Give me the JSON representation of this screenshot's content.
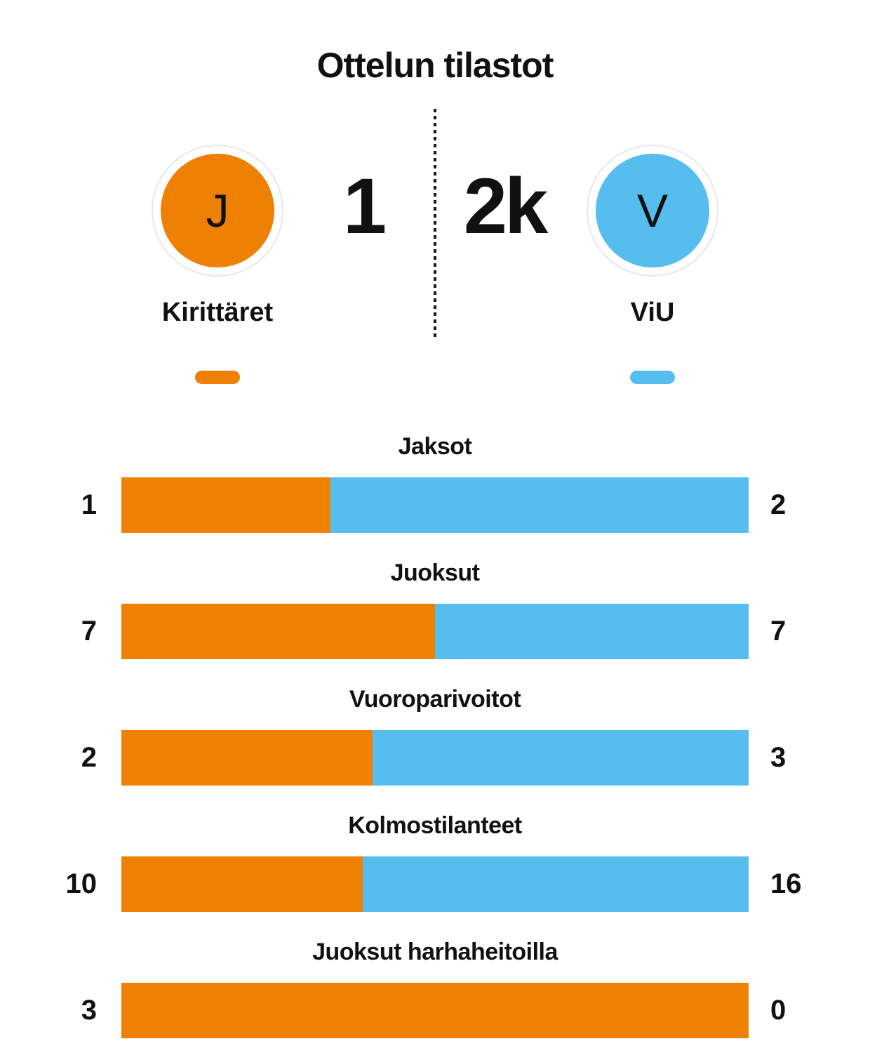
{
  "title": "Ottelun tilastot",
  "score": {
    "home": "1",
    "away": "2k"
  },
  "teams": {
    "home": {
      "name": "Kirittäret",
      "initial": "J",
      "color": "#ee8104"
    },
    "away": {
      "name": "ViU",
      "initial": "V",
      "color": "#55beee"
    }
  },
  "chart_data": {
    "type": "bar",
    "title": "Ottelun tilastot",
    "orientation": "horizontal-stacked-pairs",
    "categories": [
      "Jaksot",
      "Juoksut",
      "Vuoroparivoitot",
      "Kolmostilanteet",
      "Juoksut harhaheitoilla"
    ],
    "series": [
      {
        "name": "Kirittäret",
        "color": "#ee8104",
        "values": [
          1,
          7,
          2,
          10,
          3
        ]
      },
      {
        "name": "ViU",
        "color": "#55beee",
        "values": [
          2,
          7,
          3,
          16,
          0
        ]
      }
    ],
    "value_labels": "both-ends",
    "legend_position": "top"
  }
}
